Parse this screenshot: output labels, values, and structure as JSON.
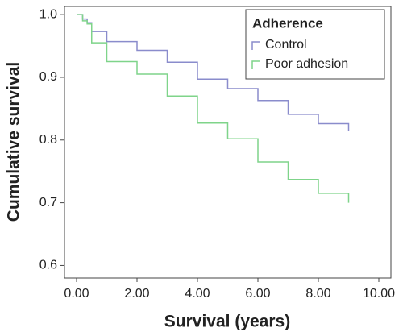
{
  "chart_data": {
    "type": "step",
    "x_label": "Survival (years)",
    "y_label": "Cumulative survival",
    "legend_title": "Adherence",
    "legend_position": "upper right",
    "xlim": [
      -0.4,
      10.4
    ],
    "ylim": [
      0.58,
      1.013
    ],
    "xticks": [
      {
        "value": 0,
        "label": "0.00"
      },
      {
        "value": 2,
        "label": "2.00"
      },
      {
        "value": 4,
        "label": "4.00"
      },
      {
        "value": 6,
        "label": "6.00"
      },
      {
        "value": 8,
        "label": "8.00"
      },
      {
        "value": 10,
        "label": "10.00"
      }
    ],
    "yticks": [
      {
        "value": 0.6,
        "label": "0.6"
      },
      {
        "value": 0.7,
        "label": "0.7"
      },
      {
        "value": 0.8,
        "label": "0.8"
      },
      {
        "value": 0.9,
        "label": "0.9"
      },
      {
        "value": 1.0,
        "label": "1.0"
      }
    ],
    "series": [
      {
        "name": "Control",
        "color": "#8a8ccc",
        "x": [
          0,
          0.2,
          0.35,
          0.5,
          1.0,
          2.0,
          3.0,
          4.0,
          5.0,
          6.0,
          7.0,
          8.0,
          9.0
        ],
        "values": [
          1.0,
          0.993,
          0.987,
          0.973,
          0.957,
          0.943,
          0.924,
          0.897,
          0.882,
          0.863,
          0.841,
          0.826,
          0.815
        ]
      },
      {
        "name": "Poor adhesion",
        "color": "#7fd48a",
        "x": [
          0,
          0.2,
          0.35,
          0.5,
          1.0,
          2.0,
          3.0,
          4.0,
          5.0,
          6.0,
          7.0,
          8.0,
          9.0
        ],
        "values": [
          1.0,
          0.99,
          0.985,
          0.955,
          0.925,
          0.905,
          0.87,
          0.827,
          0.802,
          0.765,
          0.737,
          0.715,
          0.7
        ]
      }
    ]
  }
}
